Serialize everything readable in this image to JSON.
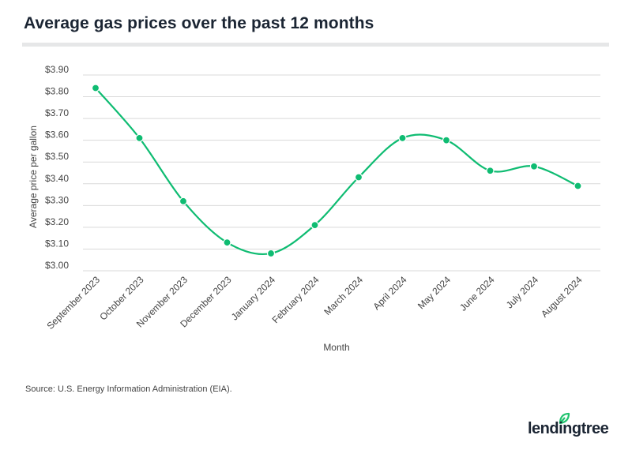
{
  "title": "Average gas prices over the past 12 months",
  "source": "Source: U.S. Energy Information Administration (EIA).",
  "logo": {
    "text": "lendingtree",
    "leaf_color": "#21c36f"
  },
  "colors": {
    "line": "#0fbc72",
    "grid": "#d9d9d9",
    "text": "#444444"
  },
  "chart_data": {
    "type": "line",
    "title": "Average gas prices over the past 12 months",
    "xlabel": "Month",
    "ylabel": "Average price per gallon",
    "categories": [
      "September 2023",
      "October 2023",
      "November 2023",
      "December 2023",
      "January 2024",
      "February 2024",
      "March 2024",
      "April 2024",
      "May 2024",
      "June 2024",
      "July 2024",
      "August 2024"
    ],
    "series": [
      {
        "name": "Average price per gallon",
        "values": [
          3.84,
          3.61,
          3.32,
          3.13,
          3.08,
          3.21,
          3.43,
          3.61,
          3.6,
          3.46,
          3.48,
          3.39
        ]
      }
    ],
    "ylim": [
      3.0,
      3.9
    ],
    "yticks": [
      3.0,
      3.1,
      3.2,
      3.3,
      3.4,
      3.5,
      3.6,
      3.7,
      3.8,
      3.9
    ],
    "ytick_labels": [
      "$3.00",
      "$3.10",
      "$3.20",
      "$3.30",
      "$3.40",
      "$3.50",
      "$3.60",
      "$3.70",
      "$3.80",
      "$3.90"
    ],
    "grid": true,
    "legend": "none"
  }
}
